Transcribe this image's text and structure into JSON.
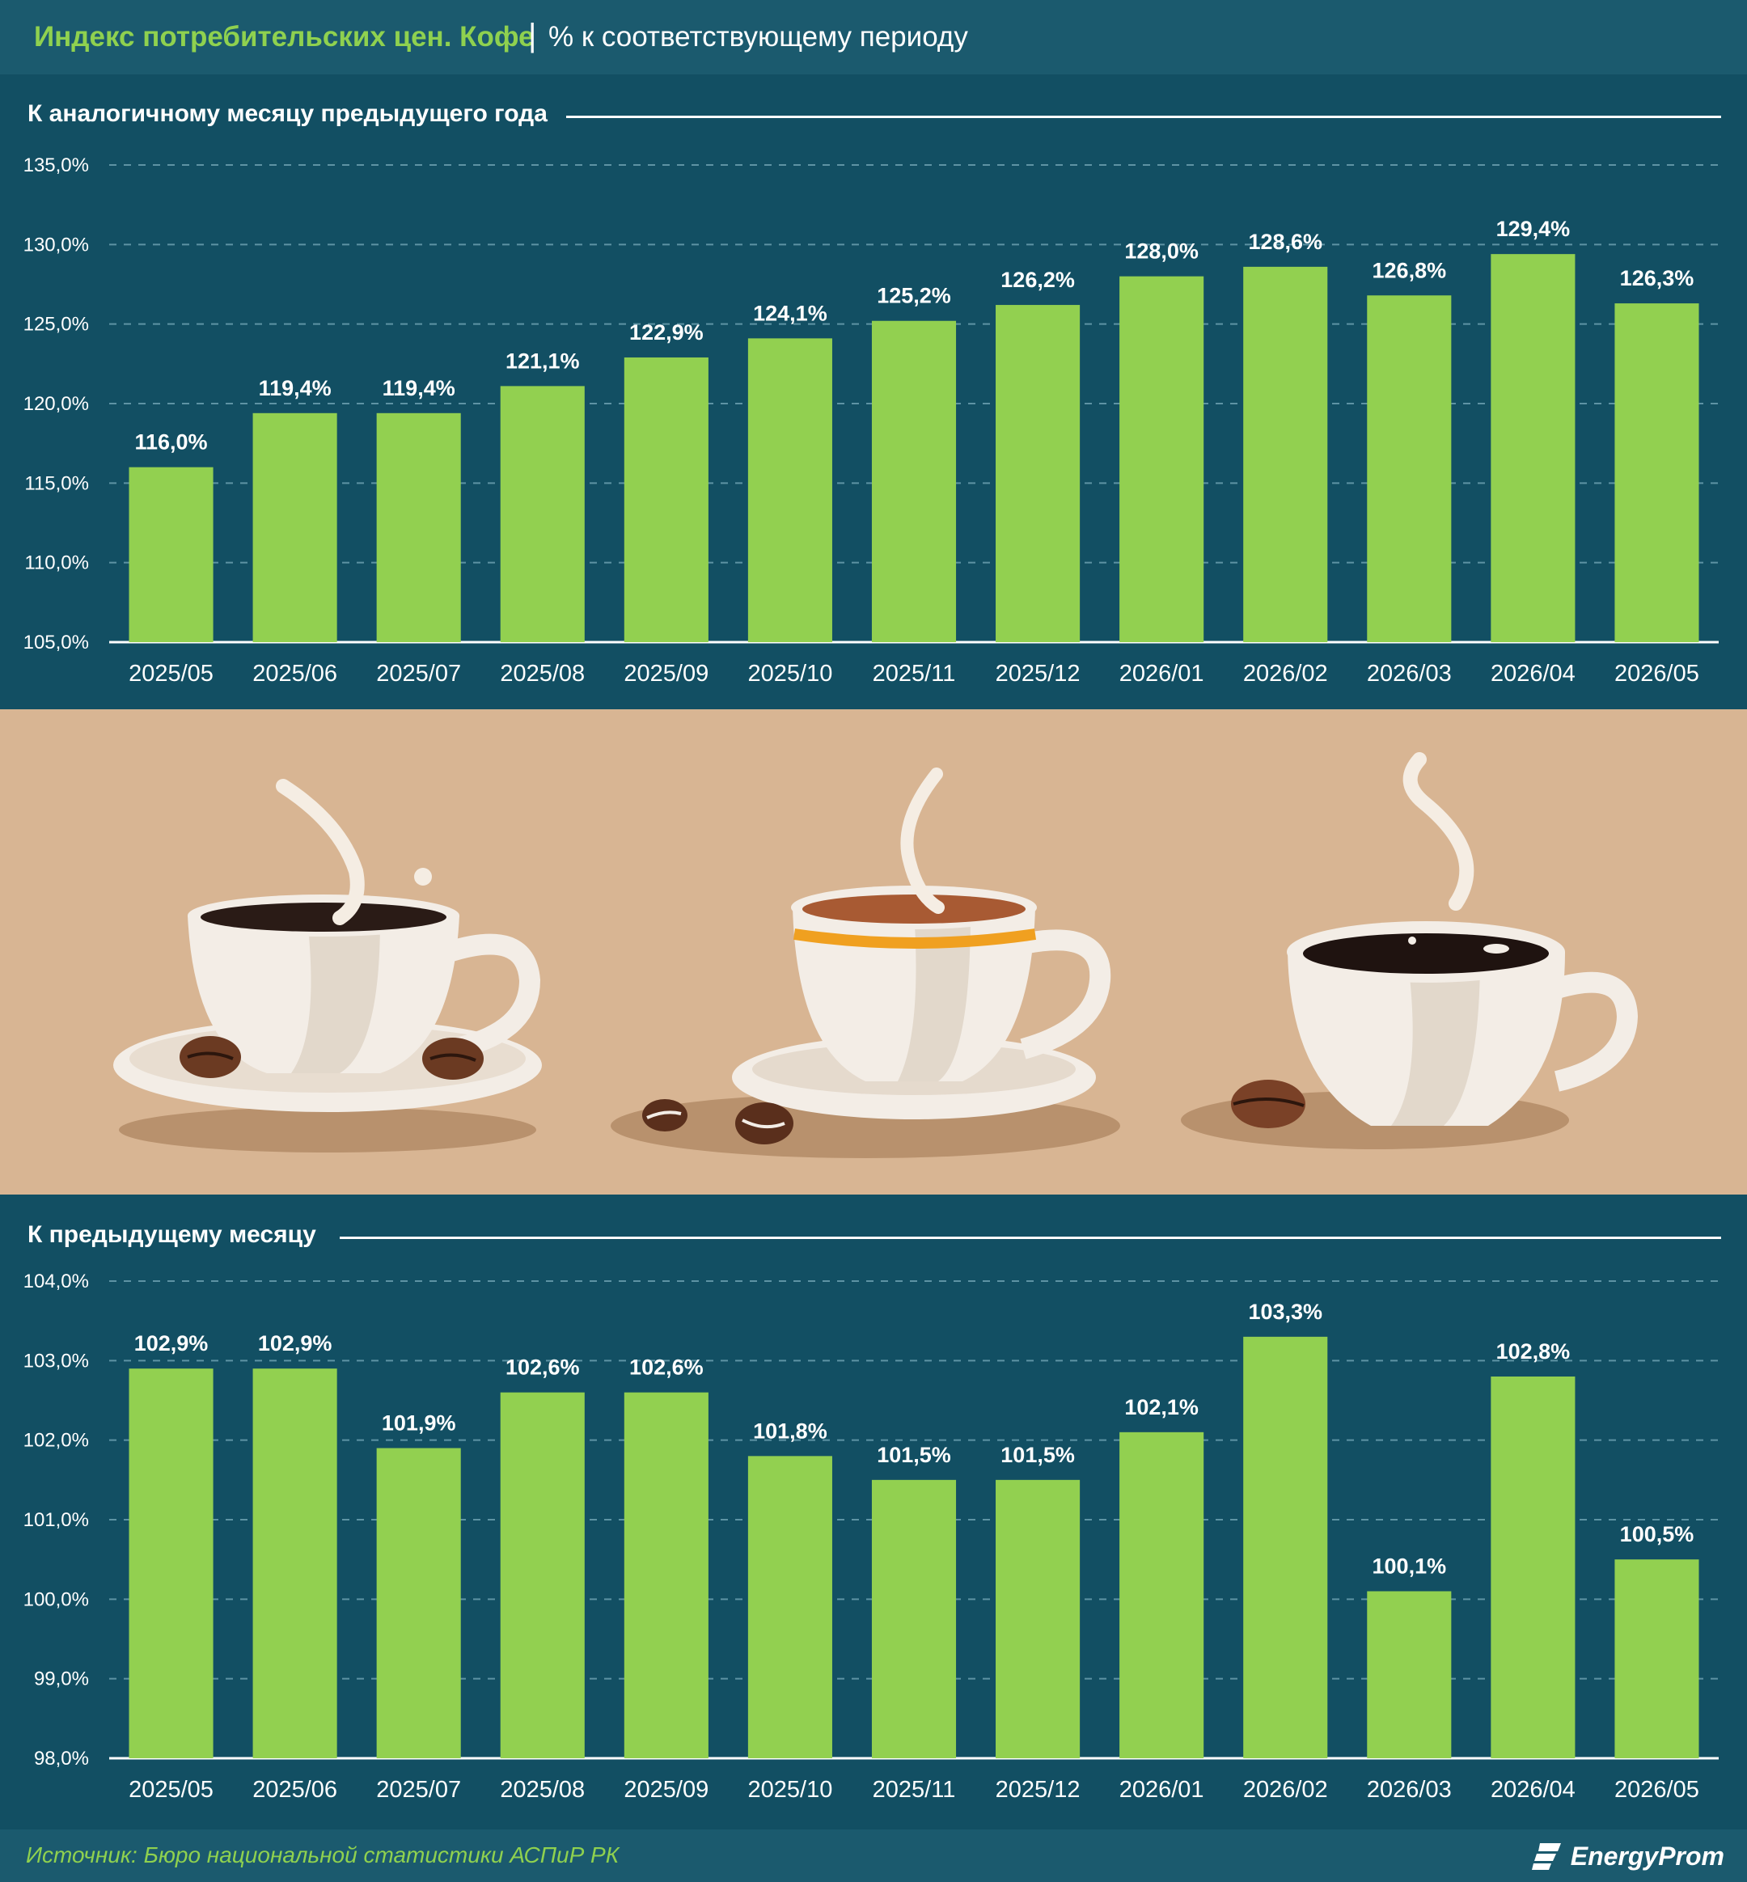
{
  "header": {
    "title": "Индекс потребительских цен. Кофе",
    "separator": "|",
    "subtitle": "% к соответствующему периоду"
  },
  "colors": {
    "background": "#124f63",
    "bar": "#92d050",
    "accent": "#8fd14f",
    "illustration_bg": "#d8b593"
  },
  "icons": [
    "coffee-cup-icon",
    "coffee-bean-icon",
    "steam-icon",
    "energyprom-logo-icon"
  ],
  "chart_data": [
    {
      "type": "bar",
      "title": "К аналогичному месяцу предыдущего года",
      "categories": [
        "2025/05",
        "2025/06",
        "2025/07",
        "2025/08",
        "2025/09",
        "2025/10",
        "2025/11",
        "2025/12",
        "2026/01",
        "2026/02",
        "2026/03",
        "2026/04",
        "2026/05"
      ],
      "values": [
        116.0,
        119.4,
        119.4,
        121.1,
        122.9,
        124.1,
        125.2,
        126.2,
        128.0,
        128.6,
        126.8,
        129.4,
        126.3
      ],
      "value_labels": [
        "116,0%",
        "119,4%",
        "119,4%",
        "121,1%",
        "122,9%",
        "124,1%",
        "125,2%",
        "126,2%",
        "128,0%",
        "128,6%",
        "126,8%",
        "129,4%",
        "126,3%"
      ],
      "yticks": [
        "105,0%",
        "110,0%",
        "115,0%",
        "120,0%",
        "125,0%",
        "130,0%",
        "135,0%"
      ],
      "ylim": [
        105,
        135
      ],
      "ystep": 5,
      "grid": true
    },
    {
      "type": "bar",
      "title": "К предыдущему месяцу",
      "categories": [
        "2025/05",
        "2025/06",
        "2025/07",
        "2025/08",
        "2025/09",
        "2025/10",
        "2025/11",
        "2025/12",
        "2026/01",
        "2026/02",
        "2026/03",
        "2026/04",
        "2026/05"
      ],
      "values": [
        102.9,
        102.9,
        101.9,
        102.6,
        102.6,
        101.8,
        101.5,
        101.5,
        102.1,
        103.3,
        100.1,
        102.8,
        100.5
      ],
      "value_labels": [
        "102,9%",
        "102,9%",
        "101,9%",
        "102,6%",
        "102,6%",
        "101,8%",
        "101,5%",
        "101,5%",
        "102,1%",
        "103,3%",
        "100,1%",
        "102,8%",
        "100,5%"
      ],
      "yticks": [
        "98,0%",
        "99,0%",
        "100,0%",
        "101,0%",
        "102,0%",
        "103,0%",
        "104,0%"
      ],
      "ylim": [
        98,
        104
      ],
      "ystep": 1,
      "grid": true
    }
  ],
  "footer": {
    "source": "Источник: Бюро национальной статистики АСПиР РК",
    "logo": "EnergyProm"
  }
}
